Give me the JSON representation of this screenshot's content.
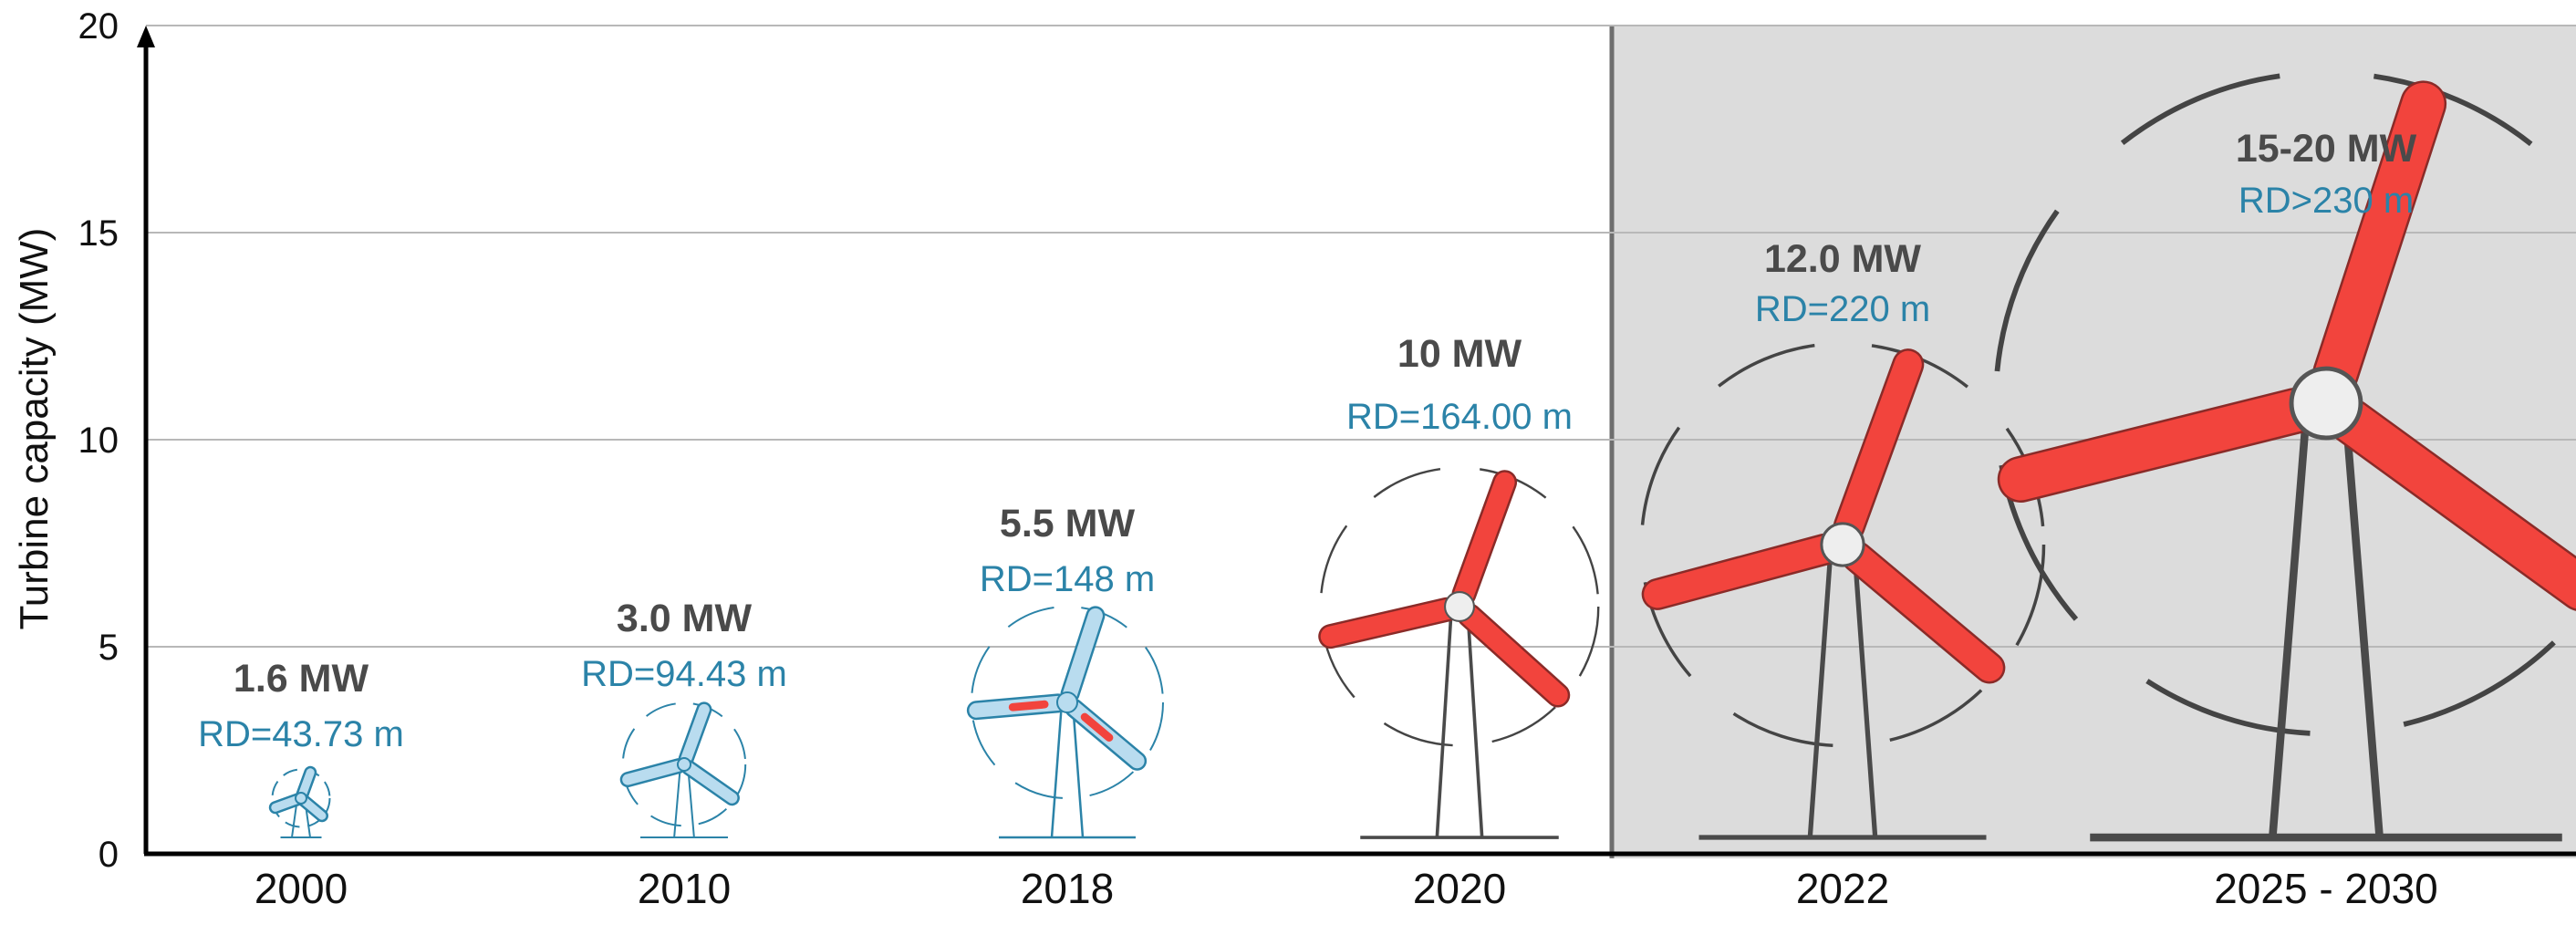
{
  "chart_data": {
    "type": "scatter",
    "title": "",
    "xlabel": "",
    "ylabel": "Turbine capacity (MW)",
    "ylim": [
      0,
      20
    ],
    "yticks": [
      "0",
      "5",
      "10",
      "15",
      "20"
    ],
    "grid": true,
    "categories": [
      "2000",
      "2010",
      "2018",
      "2020",
      "2022",
      "2025 - 2030"
    ],
    "values": [
      1.6,
      3.0,
      5.5,
      10,
      12.0,
      17.5
    ],
    "capacity_labels": [
      "1.6 MW",
      "3.0 MW",
      "5.5 MW",
      "10 MW",
      "12.0 MW",
      "15-20 MW"
    ],
    "rotor_diameter_labels": [
      "RD=43.73 m",
      "RD=94.43 m",
      "RD=148 m",
      "RD=164.00 m",
      "RD=220 m",
      "RD>230 m"
    ],
    "rotor_diameter_m": [
      43.73,
      94.43,
      148,
      164.0,
      220,
      230
    ],
    "future_region_start": "2022",
    "colors": {
      "blade_early": "#b9dcef",
      "blade_early_stroke": "#2b83a8",
      "blade_red": "#f2443d",
      "blade_red_stroke": "#8a2b28",
      "future_shade": "#dcdcdc",
      "grid": "#b8b8b8",
      "axis": "#000000"
    }
  }
}
